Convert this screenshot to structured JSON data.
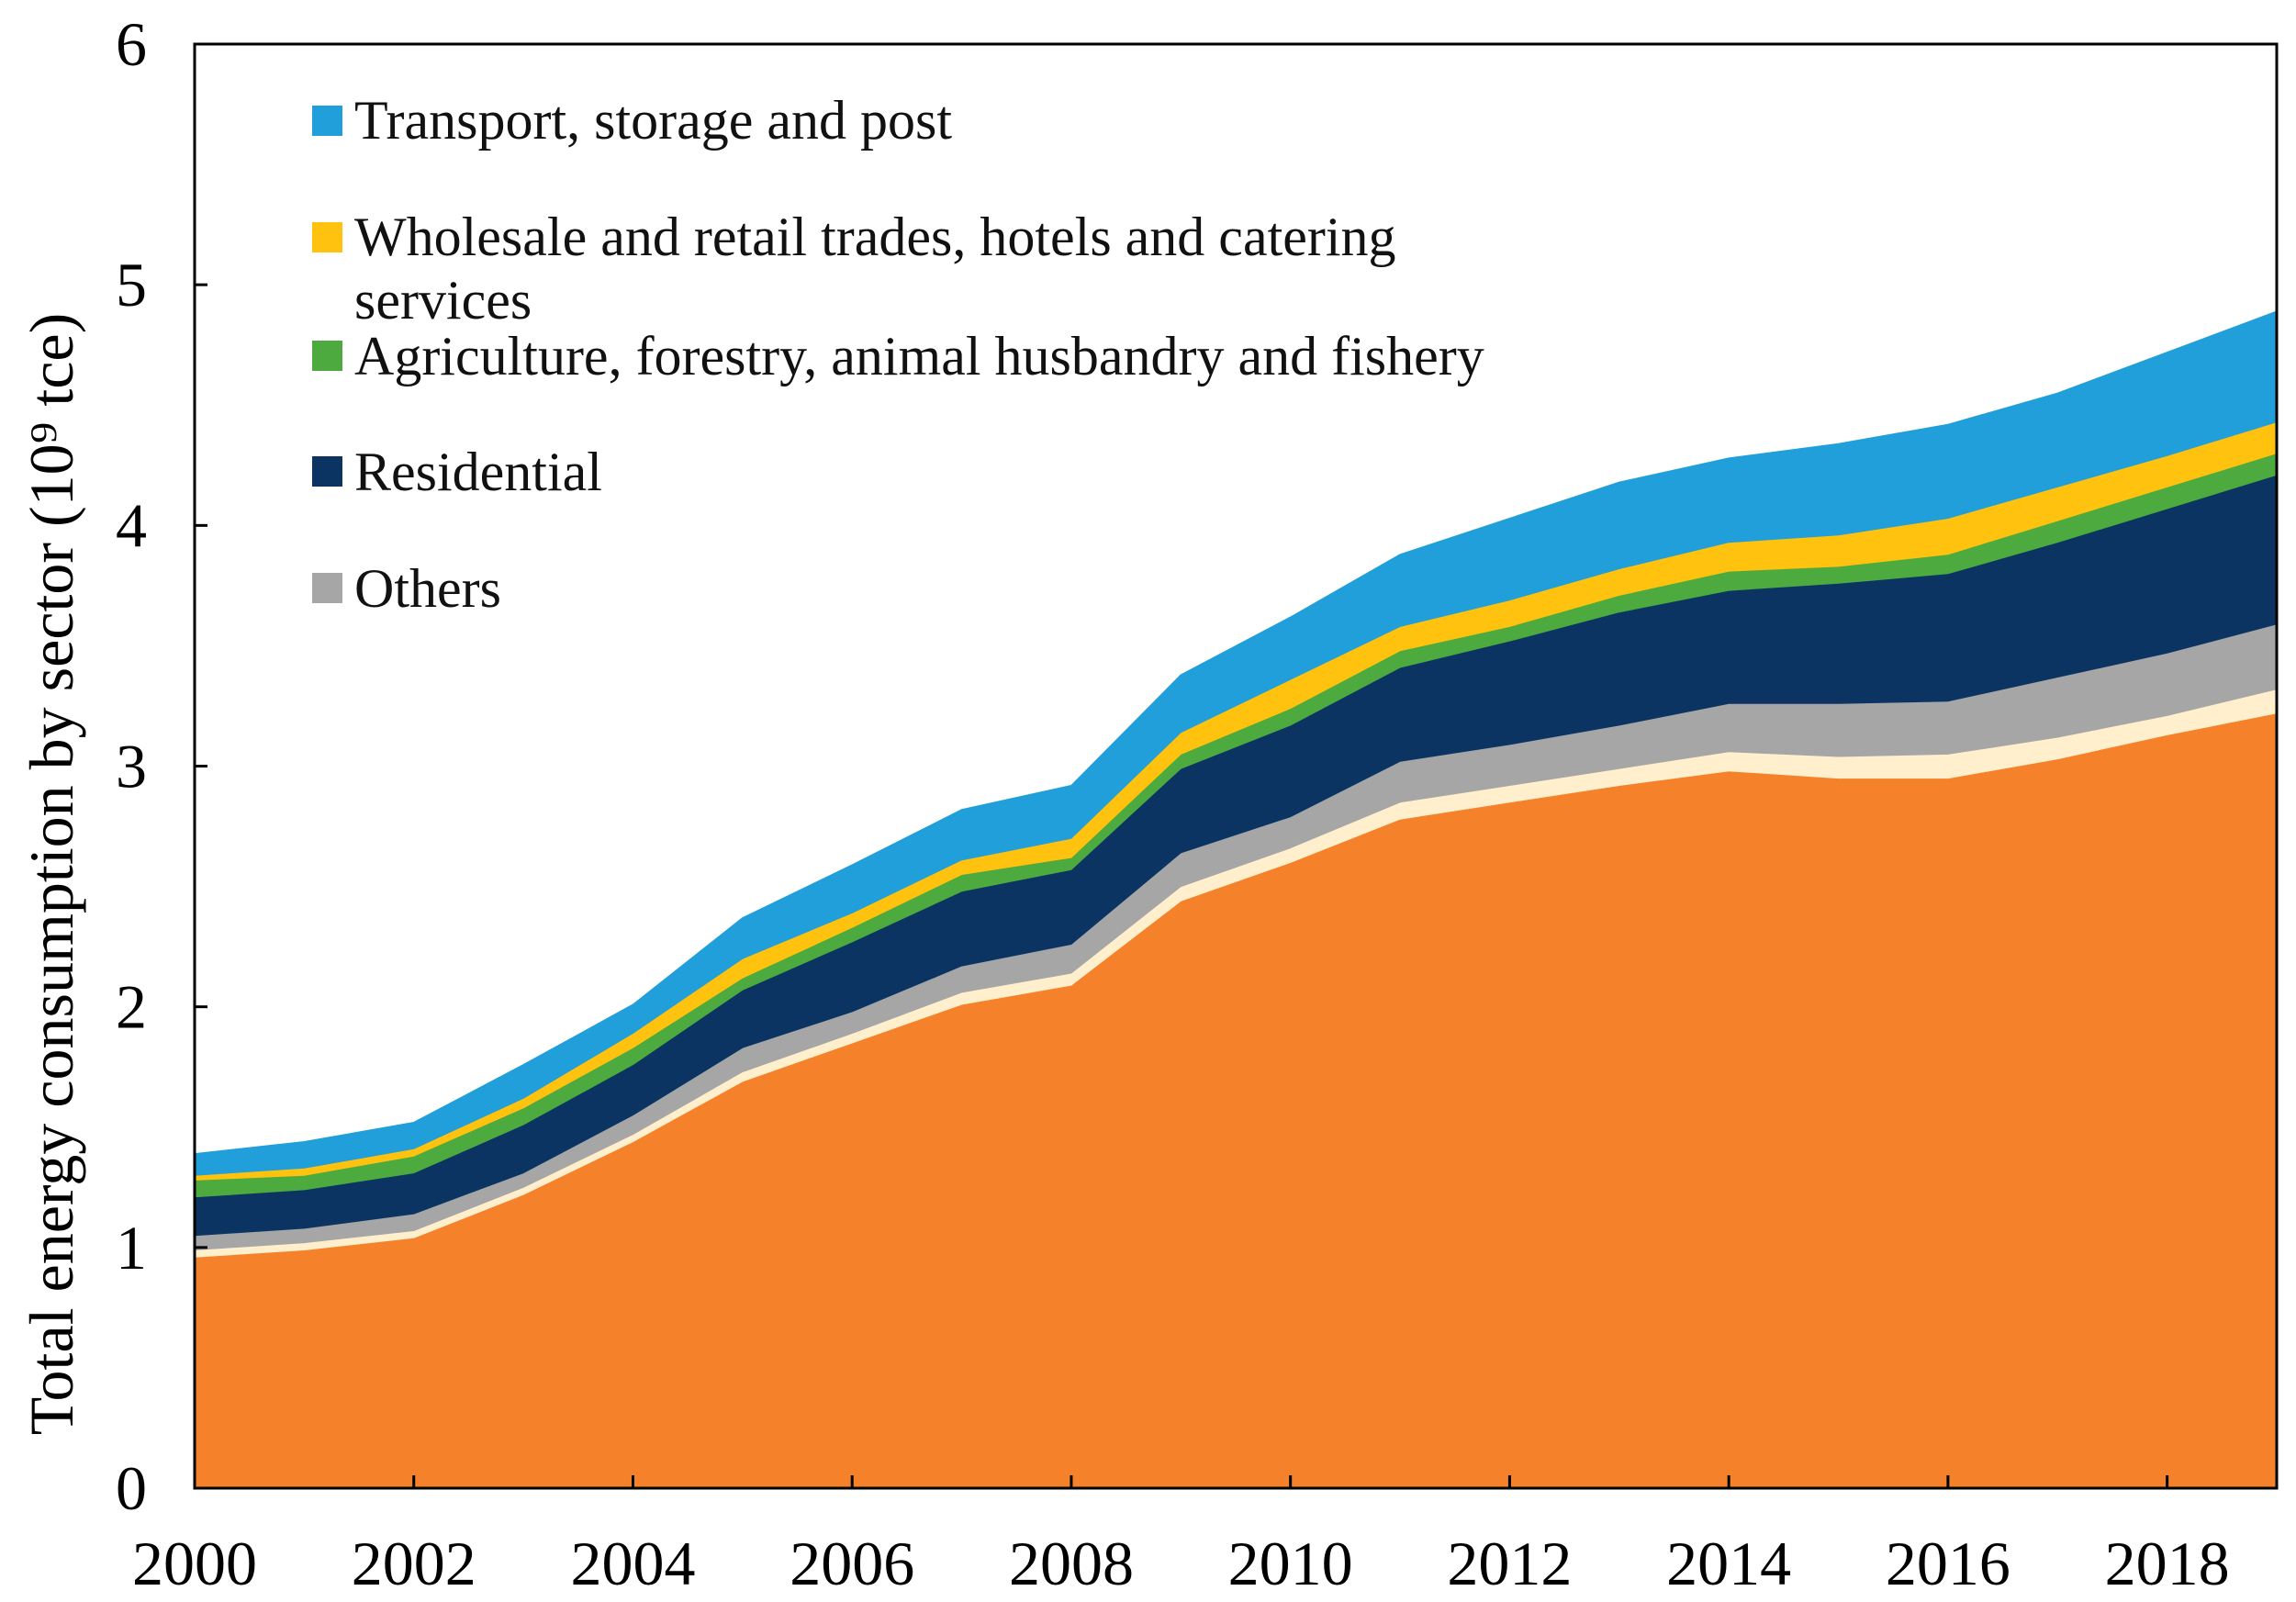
{
  "chart_data": {
    "type": "area",
    "stacked": true,
    "ylabel": "Total energy consumption by sector (10⁹ tce)",
    "x": [
      2000,
      2001,
      2002,
      2003,
      2004,
      2005,
      2006,
      2007,
      2008,
      2009,
      2010,
      2011,
      2012,
      2013,
      2014,
      2015,
      2016,
      2017,
      2018,
      2019
    ],
    "xlim": [
      2000,
      2019
    ],
    "ylim": [
      0,
      6
    ],
    "xticks": [
      2000,
      2002,
      2004,
      2006,
      2008,
      2010,
      2012,
      2014,
      2016,
      2018
    ],
    "yticks": [
      0,
      1,
      2,
      3,
      4,
      5,
      6
    ],
    "grid": false,
    "legend_position": "top-left",
    "series": [
      {
        "color": "#F5822A",
        "values": [
          0.96,
          0.99,
          1.04,
          1.22,
          1.44,
          1.69,
          1.85,
          2.01,
          2.09,
          2.44,
          2.6,
          2.78,
          2.85,
          2.92,
          2.98,
          2.95,
          2.95,
          3.03,
          3.13,
          3.22
        ]
      },
      {
        "color": "#FFEFCC",
        "values": [
          0.03,
          0.03,
          0.03,
          0.03,
          0.03,
          0.04,
          0.04,
          0.05,
          0.05,
          0.06,
          0.06,
          0.07,
          0.07,
          0.07,
          0.08,
          0.09,
          0.1,
          0.09,
          0.08,
          0.1
        ]
      },
      {
        "name": "Others",
        "color": "#A6A6A6",
        "values": [
          0.06,
          0.06,
          0.07,
          0.06,
          0.08,
          0.1,
          0.09,
          0.11,
          0.12,
          0.14,
          0.13,
          0.17,
          0.17,
          0.18,
          0.2,
          0.22,
          0.22,
          0.25,
          0.26,
          0.27
        ]
      },
      {
        "name": "Residential",
        "color": "#0B3463",
        "values": [
          0.16,
          0.16,
          0.17,
          0.2,
          0.21,
          0.24,
          0.29,
          0.31,
          0.31,
          0.35,
          0.38,
          0.39,
          0.43,
          0.47,
          0.47,
          0.5,
          0.53,
          0.56,
          0.6,
          0.62
        ]
      },
      {
        "name": "Agriculture, forestry, animal husbandry and fishery",
        "color": "#4DAA3E",
        "values": [
          0.07,
          0.06,
          0.07,
          0.07,
          0.07,
          0.05,
          0.06,
          0.07,
          0.05,
          0.06,
          0.07,
          0.07,
          0.06,
          0.07,
          0.08,
          0.07,
          0.08,
          0.09,
          0.09,
          0.09
        ]
      },
      {
        "name": "Wholesale and retail trades, hotels and catering services",
        "color": "#FFC20E",
        "values": [
          0.02,
          0.03,
          0.03,
          0.04,
          0.06,
          0.08,
          0.06,
          0.06,
          0.08,
          0.09,
          0.12,
          0.1,
          0.11,
          0.11,
          0.12,
          0.13,
          0.15,
          0.14,
          0.13,
          0.13
        ]
      },
      {
        "name": "Transport, storage and post",
        "color": "#219FDA",
        "values": [
          0.09,
          0.11,
          0.11,
          0.14,
          0.12,
          0.17,
          0.2,
          0.21,
          0.22,
          0.24,
          0.26,
          0.3,
          0.34,
          0.36,
          0.35,
          0.38,
          0.39,
          0.39,
          0.43,
          0.46
        ]
      }
    ]
  }
}
